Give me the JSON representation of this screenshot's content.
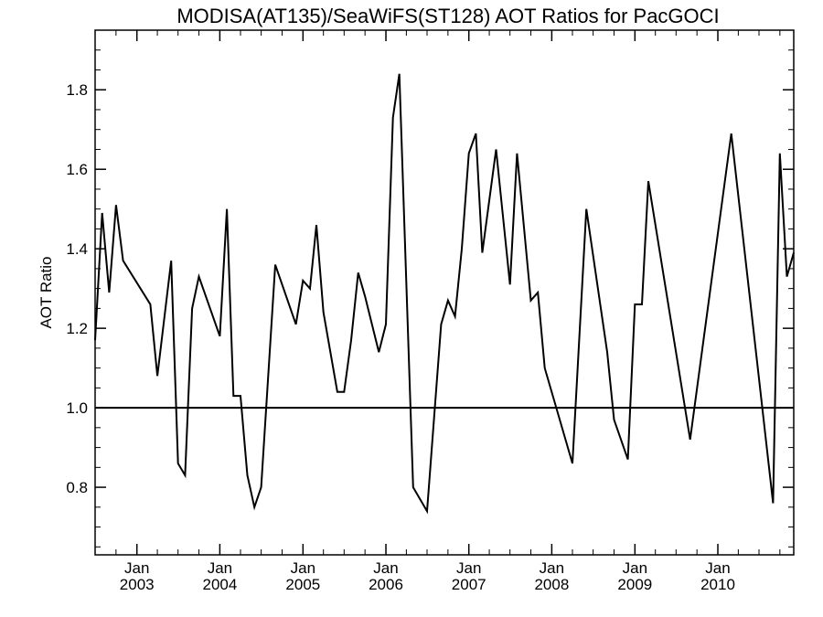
{
  "chart_data": {
    "type": "line",
    "title": "MODISA(AT135)/SeaWiFS(ST128)  AOT Ratios for PacGOCI",
    "xlabel": "",
    "ylabel": "AOT Ratio",
    "xlim": [
      "2002-07-01",
      "2010-12-01"
    ],
    "ylim": [
      0.63,
      1.95
    ],
    "yticks": [
      0.8,
      1.0,
      1.2,
      1.4,
      1.6,
      1.8
    ],
    "ytick_labels": [
      "0.8",
      "1.0",
      "1.2",
      "1.4",
      "1.6",
      "1.8"
    ],
    "xticks": [
      {
        "date": "2003-01-01",
        "month": "Jan",
        "year": "2003"
      },
      {
        "date": "2004-01-01",
        "month": "Jan",
        "year": "2004"
      },
      {
        "date": "2005-01-01",
        "month": "Jan",
        "year": "2005"
      },
      {
        "date": "2006-01-01",
        "month": "Jan",
        "year": "2006"
      },
      {
        "date": "2007-01-01",
        "month": "Jan",
        "year": "2007"
      },
      {
        "date": "2008-01-01",
        "month": "Jan",
        "year": "2008"
      },
      {
        "date": "2009-01-01",
        "month": "Jan",
        "year": "2009"
      },
      {
        "date": "2010-01-01",
        "month": "Jan",
        "year": "2010"
      }
    ],
    "reference_line": 1.0,
    "grid": false,
    "series": [
      {
        "x": [
          "2002-07-01",
          "2002-08-01",
          "2002-09-01",
          "2002-10-01",
          "2002-11-01",
          "2003-03-01",
          "2003-04-01",
          "2003-06-01",
          "2003-07-01",
          "2003-08-01",
          "2003-09-01",
          "2003-10-01",
          "2004-01-01",
          "2004-02-01",
          "2004-03-01",
          "2004-04-01",
          "2004-05-01",
          "2004-06-01",
          "2004-07-01",
          "2004-09-01",
          "2004-12-01",
          "2005-01-01",
          "2005-02-01",
          "2005-03-01",
          "2005-04-01",
          "2005-06-01",
          "2005-07-01",
          "2005-08-01",
          "2005-09-01",
          "2005-10-01",
          "2005-12-01",
          "2006-01-01",
          "2006-02-01",
          "2006-03-01",
          "2006-05-01",
          "2006-07-01",
          "2006-09-01",
          "2006-10-01",
          "2006-11-01",
          "2006-12-01",
          "2007-01-01",
          "2007-02-01",
          "2007-03-01",
          "2007-05-01",
          "2007-07-01",
          "2007-08-01",
          "2007-10-01",
          "2007-11-01",
          "2007-12-01",
          "2008-04-01",
          "2008-06-01",
          "2008-09-01",
          "2008-10-01",
          "2008-12-01",
          "2009-01-01",
          "2009-02-01",
          "2009-03-01",
          "2009-09-01",
          "2010-03-01",
          "2010-09-01",
          "2010-10-01",
          "2010-11-01",
          "2010-12-01"
        ],
        "y": [
          1.17,
          1.49,
          1.29,
          1.51,
          1.37,
          1.26,
          1.08,
          1.37,
          0.86,
          0.83,
          1.25,
          1.33,
          1.18,
          1.5,
          1.03,
          1.03,
          0.83,
          0.75,
          0.8,
          1.36,
          1.21,
          1.32,
          1.3,
          1.46,
          1.24,
          1.04,
          1.04,
          1.17,
          1.34,
          1.28,
          1.14,
          1.21,
          1.73,
          1.84,
          0.8,
          0.74,
          1.21,
          1.27,
          1.23,
          1.4,
          1.64,
          1.69,
          1.39,
          1.65,
          1.31,
          1.64,
          1.27,
          1.29,
          1.1,
          0.86,
          1.5,
          1.14,
          0.97,
          0.87,
          1.26,
          1.26,
          1.57,
          0.92,
          1.69,
          0.76,
          1.64,
          1.33,
          1.39
        ]
      }
    ]
  }
}
